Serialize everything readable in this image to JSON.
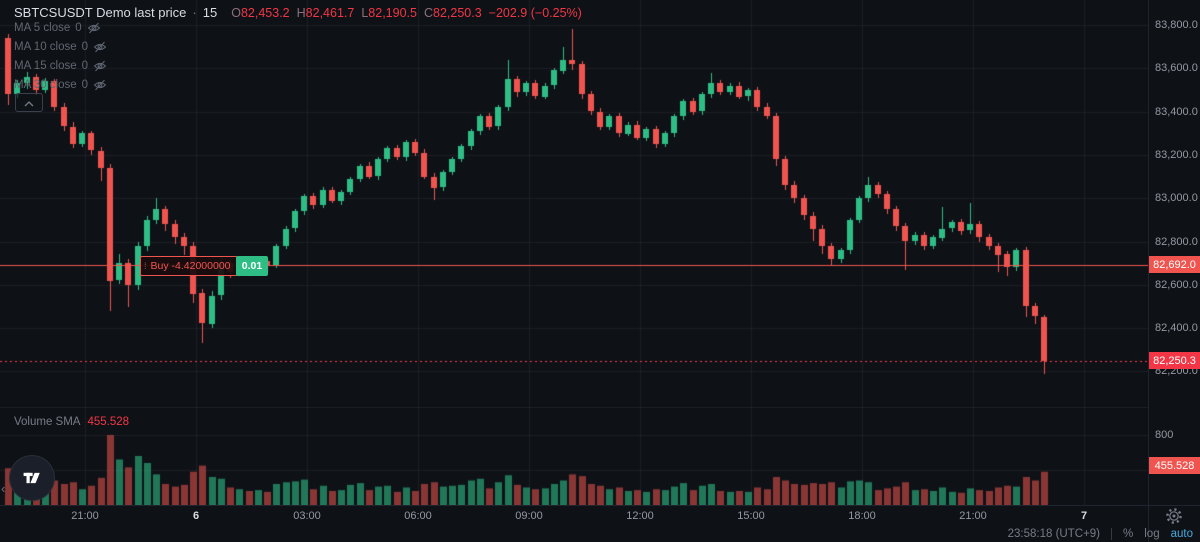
{
  "header": {
    "title": "SBTCSUSDT Demo last price",
    "separator": "·",
    "interval": "15",
    "ohlc": {
      "o_label": "O",
      "o": "82,453.2",
      "h_label": "H",
      "h": "82,461.7",
      "l_label": "L",
      "l": "82,190.5",
      "c_label": "C",
      "c": "82,250.3",
      "change": "−202.9 (−0.25%)"
    }
  },
  "ma_indicators": [
    {
      "label": "MA 5 close",
      "value": "0"
    },
    {
      "label": "MA 10 close",
      "value": "0"
    },
    {
      "label": "MA 15 close",
      "value": "0"
    },
    {
      "label": "MA 30 close",
      "value": "0"
    }
  ],
  "order": {
    "side_label": "Buy -4.42000000",
    "quantity": "0.01"
  },
  "volume_pane": {
    "title": "Volume SMA",
    "value": "455.528"
  },
  "price_scale": {
    "ticks": [
      {
        "label": "83,800.0",
        "value": 83800
      },
      {
        "label": "83,600.0",
        "value": 83600
      },
      {
        "label": "83,400.0",
        "value": 83400
      },
      {
        "label": "83,200.0",
        "value": 83200
      },
      {
        "label": "83,000.0",
        "value": 83000
      },
      {
        "label": "82,800.0",
        "value": 82800
      },
      {
        "label": "82,600.0",
        "value": 82600
      },
      {
        "label": "82,400.0",
        "value": 82400
      },
      {
        "label": "82,200.0",
        "value": 82200
      }
    ],
    "order_badge": {
      "label": "82,692.0",
      "price": 82692
    },
    "last_badge": {
      "label": "82,250.3",
      "price": 82250.3
    }
  },
  "volume_scale": {
    "ticks": [
      {
        "label": "800",
        "value": 800
      },
      {
        "label": "400",
        "value": 400
      }
    ],
    "badge": {
      "label": "455.528",
      "value": 455.528
    }
  },
  "time_scale": {
    "ticks": [
      {
        "label": "21:00",
        "major": false
      },
      {
        "label": "6",
        "major": true
      },
      {
        "label": "03:00",
        "major": false
      },
      {
        "label": "06:00",
        "major": false
      },
      {
        "label": "09:00",
        "major": false
      },
      {
        "label": "12:00",
        "major": false
      },
      {
        "label": "15:00",
        "major": false
      },
      {
        "label": "18:00",
        "major": false
      },
      {
        "label": "21:00",
        "major": false
      },
      {
        "label": "7",
        "major": true
      }
    ]
  },
  "status_bar": {
    "clock": "23:58:18 (UTC+9)",
    "percent_label": "%",
    "log_label": "log",
    "auto_label": "auto"
  },
  "colors": {
    "up": "#2ebd85",
    "down": "#f0544f",
    "last_price_red": "#f23645",
    "order_line_red": "#f0544f",
    "background": "#0e1217",
    "grid": "rgba(240,243,250,0.055)",
    "axis_text": "#9598a1",
    "dim_text": "#787b86",
    "auto_blue": "#47a8de",
    "vol_up": "rgba(46,189,133,0.6)",
    "vol_down": "rgba(240,84,79,0.55)"
  },
  "chart_data": {
    "type": "candlestick",
    "title": "SBTCSUSDT Demo last price",
    "interval_minutes": 15,
    "price_axis_range": [
      82150,
      83850
    ],
    "price_ticks": [
      83800,
      83600,
      83400,
      83200,
      83000,
      82800,
      82600,
      82400,
      82200
    ],
    "volume_ticks": [
      800,
      400
    ],
    "buy_order_price": 82692.0,
    "buy_order_size": "0.01",
    "last_price": 82250.3,
    "volume_sma": 455.528,
    "legend": "candles are [open, high, low, close, volume], 15-minute bars ending 23:58 day 6",
    "candles": [
      [
        83740,
        83760,
        83430,
        83480,
        420
      ],
      [
        83480,
        83545,
        83460,
        83530,
        260
      ],
      [
        83530,
        83585,
        83505,
        83560,
        210
      ],
      [
        83560,
        83575,
        83480,
        83500,
        190
      ],
      [
        83500,
        83555,
        83485,
        83540,
        170
      ],
      [
        83540,
        83550,
        83400,
        83420,
        280
      ],
      [
        83420,
        83440,
        83310,
        83330,
        240
      ],
      [
        83330,
        83350,
        83230,
        83250,
        260
      ],
      [
        83250,
        83310,
        83235,
        83300,
        180
      ],
      [
        83300,
        83310,
        83200,
        83220,
        220
      ],
      [
        83220,
        83235,
        83080,
        83140,
        310
      ],
      [
        83140,
        83160,
        82480,
        82620,
        800
      ],
      [
        82620,
        82740,
        82600,
        82700,
        520
      ],
      [
        82700,
        82720,
        82500,
        82600,
        430
      ],
      [
        82600,
        82800,
        82580,
        82780,
        560
      ],
      [
        82780,
        82920,
        82760,
        82900,
        480
      ],
      [
        82900,
        83000,
        82880,
        82950,
        350
      ],
      [
        82950,
        82965,
        82850,
        82880,
        240
      ],
      [
        82880,
        82900,
        82790,
        82820,
        210
      ],
      [
        82820,
        82840,
        82740,
        82780,
        230
      ],
      [
        82780,
        82800,
        82520,
        82560,
        380
      ],
      [
        82560,
        82580,
        82330,
        82420,
        450
      ],
      [
        82420,
        82570,
        82400,
        82550,
        320
      ],
      [
        82550,
        82730,
        82530,
        82700,
        300
      ],
      [
        82700,
        82720,
        82630,
        82660,
        200
      ],
      [
        82660,
        82715,
        82640,
        82700,
        180
      ],
      [
        82700,
        82710,
        82640,
        82670,
        160
      ],
      [
        82670,
        82725,
        82655,
        82710,
        170
      ],
      [
        82710,
        82720,
        82660,
        82690,
        150
      ],
      [
        82690,
        82790,
        82680,
        82780,
        240
      ],
      [
        82780,
        82870,
        82765,
        82860,
        260
      ],
      [
        82860,
        82950,
        82845,
        82940,
        270
      ],
      [
        82940,
        83020,
        82925,
        83010,
        290
      ],
      [
        83010,
        83025,
        82950,
        82970,
        180
      ],
      [
        82970,
        83050,
        82955,
        83040,
        220
      ],
      [
        83040,
        83050,
        82975,
        82990,
        160
      ],
      [
        82990,
        83040,
        82970,
        83030,
        170
      ],
      [
        83030,
        83100,
        83015,
        83090,
        230
      ],
      [
        83090,
        83160,
        83075,
        83150,
        250
      ],
      [
        83150,
        83165,
        83085,
        83100,
        170
      ],
      [
        83100,
        83190,
        83085,
        83180,
        210
      ],
      [
        83180,
        83240,
        83165,
        83230,
        220
      ],
      [
        83230,
        83245,
        83175,
        83190,
        150
      ],
      [
        83190,
        83270,
        83175,
        83260,
        200
      ],
      [
        83260,
        83275,
        83195,
        83210,
        160
      ],
      [
        83210,
        83225,
        83085,
        83100,
        240
      ],
      [
        83100,
        83115,
        82990,
        83050,
        260
      ],
      [
        83050,
        83130,
        83035,
        83120,
        210
      ],
      [
        83120,
        83190,
        83105,
        83180,
        220
      ],
      [
        83180,
        83250,
        83165,
        83240,
        230
      ],
      [
        83240,
        83320,
        83225,
        83310,
        280
      ],
      [
        83310,
        83390,
        83295,
        83380,
        300
      ],
      [
        83380,
        83395,
        83315,
        83330,
        190
      ],
      [
        83330,
        83430,
        83315,
        83420,
        260
      ],
      [
        83420,
        83640,
        83405,
        83550,
        340
      ],
      [
        83550,
        83565,
        83470,
        83490,
        230
      ],
      [
        83490,
        83540,
        83470,
        83530,
        200
      ],
      [
        83530,
        83545,
        83455,
        83470,
        180
      ],
      [
        83470,
        83530,
        83455,
        83520,
        190
      ],
      [
        83520,
        83600,
        83505,
        83590,
        240
      ],
      [
        83590,
        83700,
        83575,
        83640,
        280
      ],
      [
        83640,
        83780,
        83590,
        83620,
        350
      ],
      [
        83620,
        83635,
        83460,
        83480,
        330
      ],
      [
        83480,
        83495,
        83385,
        83400,
        240
      ],
      [
        83400,
        83415,
        83315,
        83330,
        220
      ],
      [
        83330,
        83390,
        83315,
        83380,
        180
      ],
      [
        83380,
        83395,
        83285,
        83300,
        200
      ],
      [
        83300,
        83350,
        83285,
        83340,
        160
      ],
      [
        83340,
        83355,
        83265,
        83280,
        170
      ],
      [
        83280,
        83330,
        83265,
        83320,
        150
      ],
      [
        83320,
        83335,
        83235,
        83250,
        180
      ],
      [
        83250,
        83310,
        83235,
        83300,
        170
      ],
      [
        83300,
        83390,
        83285,
        83380,
        210
      ],
      [
        83380,
        83460,
        83365,
        83450,
        250
      ],
      [
        83450,
        83465,
        83385,
        83400,
        170
      ],
      [
        83400,
        83490,
        83385,
        83480,
        220
      ],
      [
        83480,
        83580,
        83465,
        83530,
        240
      ],
      [
        83530,
        83545,
        83475,
        83490,
        160
      ],
      [
        83490,
        83530,
        83475,
        83520,
        150
      ],
      [
        83520,
        83535,
        83455,
        83470,
        160
      ],
      [
        83470,
        83510,
        83450,
        83500,
        150
      ],
      [
        83500,
        83515,
        83405,
        83420,
        200
      ],
      [
        83420,
        83440,
        83365,
        83380,
        180
      ],
      [
        83380,
        83395,
        83150,
        83180,
        320
      ],
      [
        83180,
        83195,
        83040,
        83060,
        280
      ],
      [
        83060,
        83080,
        82980,
        83000,
        240
      ],
      [
        83000,
        83015,
        82900,
        82920,
        230
      ],
      [
        82920,
        82935,
        82800,
        82860,
        250
      ],
      [
        82860,
        82875,
        82740,
        82780,
        240
      ],
      [
        82780,
        82795,
        82690,
        82720,
        260
      ],
      [
        82720,
        82770,
        82700,
        82760,
        200
      ],
      [
        82760,
        82910,
        82745,
        82900,
        270
      ],
      [
        82900,
        83010,
        82885,
        83000,
        280
      ],
      [
        83000,
        83100,
        82985,
        83060,
        260
      ],
      [
        83060,
        83075,
        83000,
        83020,
        170
      ],
      [
        83020,
        83035,
        82930,
        82950,
        190
      ],
      [
        82950,
        82965,
        82850,
        82870,
        210
      ],
      [
        82870,
        82885,
        82670,
        82800,
        260
      ],
      [
        82800,
        82845,
        82785,
        82830,
        170
      ],
      [
        82830,
        82845,
        82760,
        82780,
        180
      ],
      [
        82780,
        82830,
        82765,
        82820,
        160
      ],
      [
        82820,
        82960,
        82805,
        82860,
        200
      ],
      [
        82860,
        82900,
        82845,
        82890,
        150
      ],
      [
        82890,
        82905,
        82830,
        82850,
        140
      ],
      [
        82850,
        82980,
        82835,
        82880,
        190
      ],
      [
        82880,
        82895,
        82800,
        82820,
        170
      ],
      [
        82820,
        82835,
        82760,
        82780,
        160
      ],
      [
        82780,
        82795,
        82660,
        82740,
        200
      ],
      [
        82740,
        82755,
        82640,
        82680,
        220
      ],
      [
        82680,
        82770,
        82665,
        82760,
        210
      ],
      [
        82760,
        82775,
        82450,
        82500,
        320
      ],
      [
        82500,
        82515,
        82420,
        82453.2,
        280
      ],
      [
        82453.2,
        82461.7,
        82190.5,
        82250.3,
        380
      ]
    ]
  }
}
